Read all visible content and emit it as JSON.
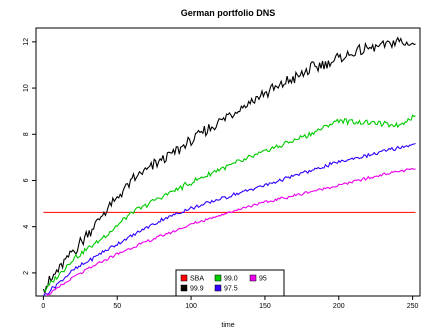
{
  "chart_data": {
    "type": "line",
    "title": "German portfolio DNS",
    "xlabel": "time",
    "ylabel": "",
    "xlim": [
      -5,
      255
    ],
    "ylim": [
      1.0,
      12.6
    ],
    "x_ticks": [
      0,
      50,
      100,
      150,
      200,
      250
    ],
    "y_ticks": [
      2,
      4,
      6,
      8,
      10,
      12
    ],
    "grid": false,
    "legend_position": "bottom-center",
    "series": [
      {
        "name": "SBA",
        "color": "#ff0000",
        "x": [
          0,
          252
        ],
        "values": [
          4.62,
          4.62
        ]
      },
      {
        "name": "99.9",
        "color": "#000000",
        "x": [
          0,
          20,
          40,
          60,
          80,
          100,
          120,
          140,
          160,
          180,
          200,
          220,
          240,
          252
        ],
        "values": [
          1.3,
          2.9,
          4.5,
          6.0,
          6.9,
          7.7,
          8.6,
          9.4,
          10.1,
          10.8,
          11.3,
          11.7,
          12.0,
          11.9
        ]
      },
      {
        "name": "99.0",
        "color": "#00cc00",
        "x": [
          0,
          20,
          40,
          60,
          80,
          100,
          120,
          140,
          160,
          180,
          200,
          220,
          240,
          252
        ],
        "values": [
          1.2,
          2.6,
          3.5,
          4.6,
          5.3,
          5.9,
          6.5,
          7.0,
          7.5,
          8.0,
          8.6,
          8.5,
          8.4,
          8.8
        ]
      },
      {
        "name": "97.5",
        "color": "#3300ff",
        "x": [
          0,
          20,
          40,
          60,
          80,
          100,
          120,
          140,
          160,
          180,
          200,
          220,
          240,
          252
        ],
        "values": [
          1.0,
          2.1,
          2.9,
          3.6,
          4.3,
          4.8,
          5.2,
          5.6,
          6.0,
          6.4,
          6.8,
          7.1,
          7.4,
          7.6
        ]
      },
      {
        "name": "95",
        "color": "#ee00ee",
        "x": [
          0,
          20,
          40,
          60,
          80,
          100,
          120,
          140,
          160,
          180,
          200,
          220,
          240,
          252
        ],
        "values": [
          0.9,
          1.8,
          2.5,
          3.1,
          3.6,
          4.1,
          4.5,
          4.9,
          5.2,
          5.5,
          5.8,
          6.1,
          6.4,
          6.5
        ]
      }
    ],
    "legend_rows": [
      [
        "SBA",
        "99.0",
        "95"
      ],
      [
        "99.9",
        "97.5"
      ]
    ]
  }
}
